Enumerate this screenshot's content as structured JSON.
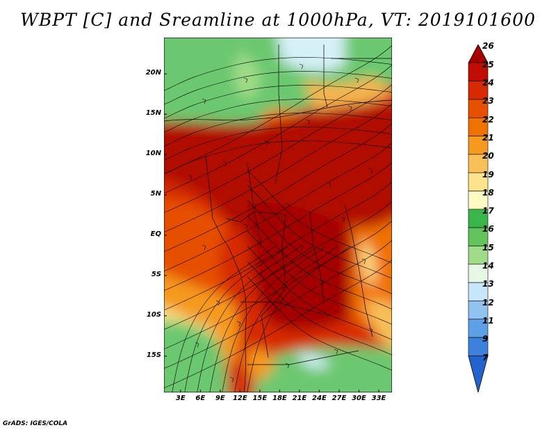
{
  "title": "WBPT [C] and Sreamline at 1000hPa, VT: 2019101600",
  "footer": "GrADS: IGES/COLA",
  "map": {
    "lat_labels": [
      "20N",
      "15N",
      "10N",
      "5N",
      "EQ",
      "5S",
      "10S",
      "15S"
    ],
    "lon_labels": [
      "3E",
      "6E",
      "9E",
      "12E",
      "15E",
      "18E",
      "21E",
      "24E",
      "27E",
      "30E",
      "33E"
    ],
    "lat_range": [
      -19.5,
      24.5
    ],
    "lon_range": [
      0.5,
      35.0
    ]
  },
  "colorbar": {
    "labels": [
      "26",
      "25",
      "24",
      "23",
      "22",
      "21",
      "20",
      "19",
      "18",
      "17",
      "16",
      "15",
      "14",
      "13",
      "12",
      "11",
      "9",
      "7"
    ],
    "colors": [
      "#a50000",
      "#c00d00",
      "#d62a00",
      "#e65000",
      "#f07200",
      "#f59a1e",
      "#f8c058",
      "#fde38c",
      "#fefcc0",
      "#39b54a",
      "#63c45d",
      "#a0dc88",
      "#e6f7e6",
      "#c8e6fa",
      "#90c3f0",
      "#5ea0e8",
      "#3c82dc",
      "#2364cc"
    ]
  }
}
